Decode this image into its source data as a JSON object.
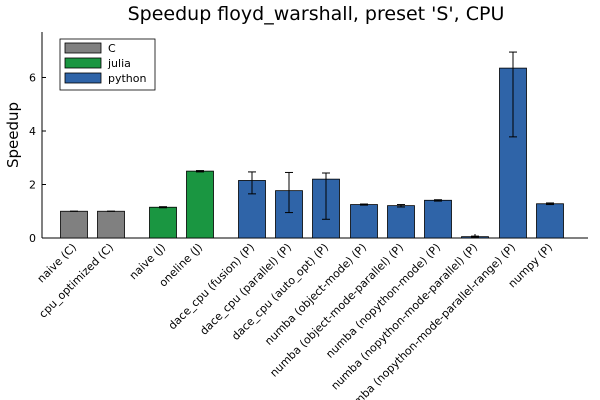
{
  "chart_data": {
    "type": "bar",
    "title": "Speedup floyd_warshall, preset 'S', CPU",
    "xlabel": "",
    "ylabel": "Speedup",
    "ylim": [
      0,
      7.7
    ],
    "yticks": [
      0,
      2,
      4,
      6
    ],
    "grid": false,
    "legend_position": "top-left",
    "legend": [
      {
        "name": "C",
        "color": "#808080"
      },
      {
        "name": "julia",
        "color": "#1a9641"
      },
      {
        "name": "python",
        "color": "#2f64a8"
      }
    ],
    "bars": [
      {
        "label": "naive (C)",
        "group": "C",
        "value": 1.0,
        "err_low": 1.0,
        "err_high": 1.0
      },
      {
        "label": "cpu_optimized (C)",
        "group": "C",
        "value": 1.0,
        "err_low": 1.0,
        "err_high": 1.0
      },
      {
        "label": "naive (J)",
        "group": "julia",
        "value": 1.15,
        "err_low": 1.13,
        "err_high": 1.17
      },
      {
        "label": "oneline (J)",
        "group": "julia",
        "value": 2.5,
        "err_low": 2.47,
        "err_high": 2.52
      },
      {
        "label": "dace_cpu (fusion) (P)",
        "group": "python",
        "value": 2.15,
        "err_low": 1.65,
        "err_high": 2.47
      },
      {
        "label": "dace_cpu (parallel) (P)",
        "group": "python",
        "value": 1.77,
        "err_low": 0.95,
        "err_high": 2.45
      },
      {
        "label": "dace_cpu (auto_opt) (P)",
        "group": "python",
        "value": 2.2,
        "err_low": 0.7,
        "err_high": 2.43
      },
      {
        "label": "numba (object-mode) (P)",
        "group": "python",
        "value": 1.25,
        "err_low": 1.23,
        "err_high": 1.27
      },
      {
        "label": "numba (object-mode-parallel) (P)",
        "group": "python",
        "value": 1.21,
        "err_low": 1.16,
        "err_high": 1.25
      },
      {
        "label": "numba (nopython-mode) (P)",
        "group": "python",
        "value": 1.41,
        "err_low": 1.38,
        "err_high": 1.43
      },
      {
        "label": "numba (nopython-mode-parallel) (P)",
        "group": "python",
        "value": 0.05,
        "err_low": 0.03,
        "err_high": 0.07
      },
      {
        "label": "numba (nopython-mode-parallel-range) (P)",
        "group": "python",
        "value": 6.35,
        "err_low": 3.78,
        "err_high": 6.95
      },
      {
        "label": "numpy (P)",
        "group": "python",
        "value": 1.28,
        "err_low": 1.25,
        "err_high": 1.31
      }
    ]
  }
}
